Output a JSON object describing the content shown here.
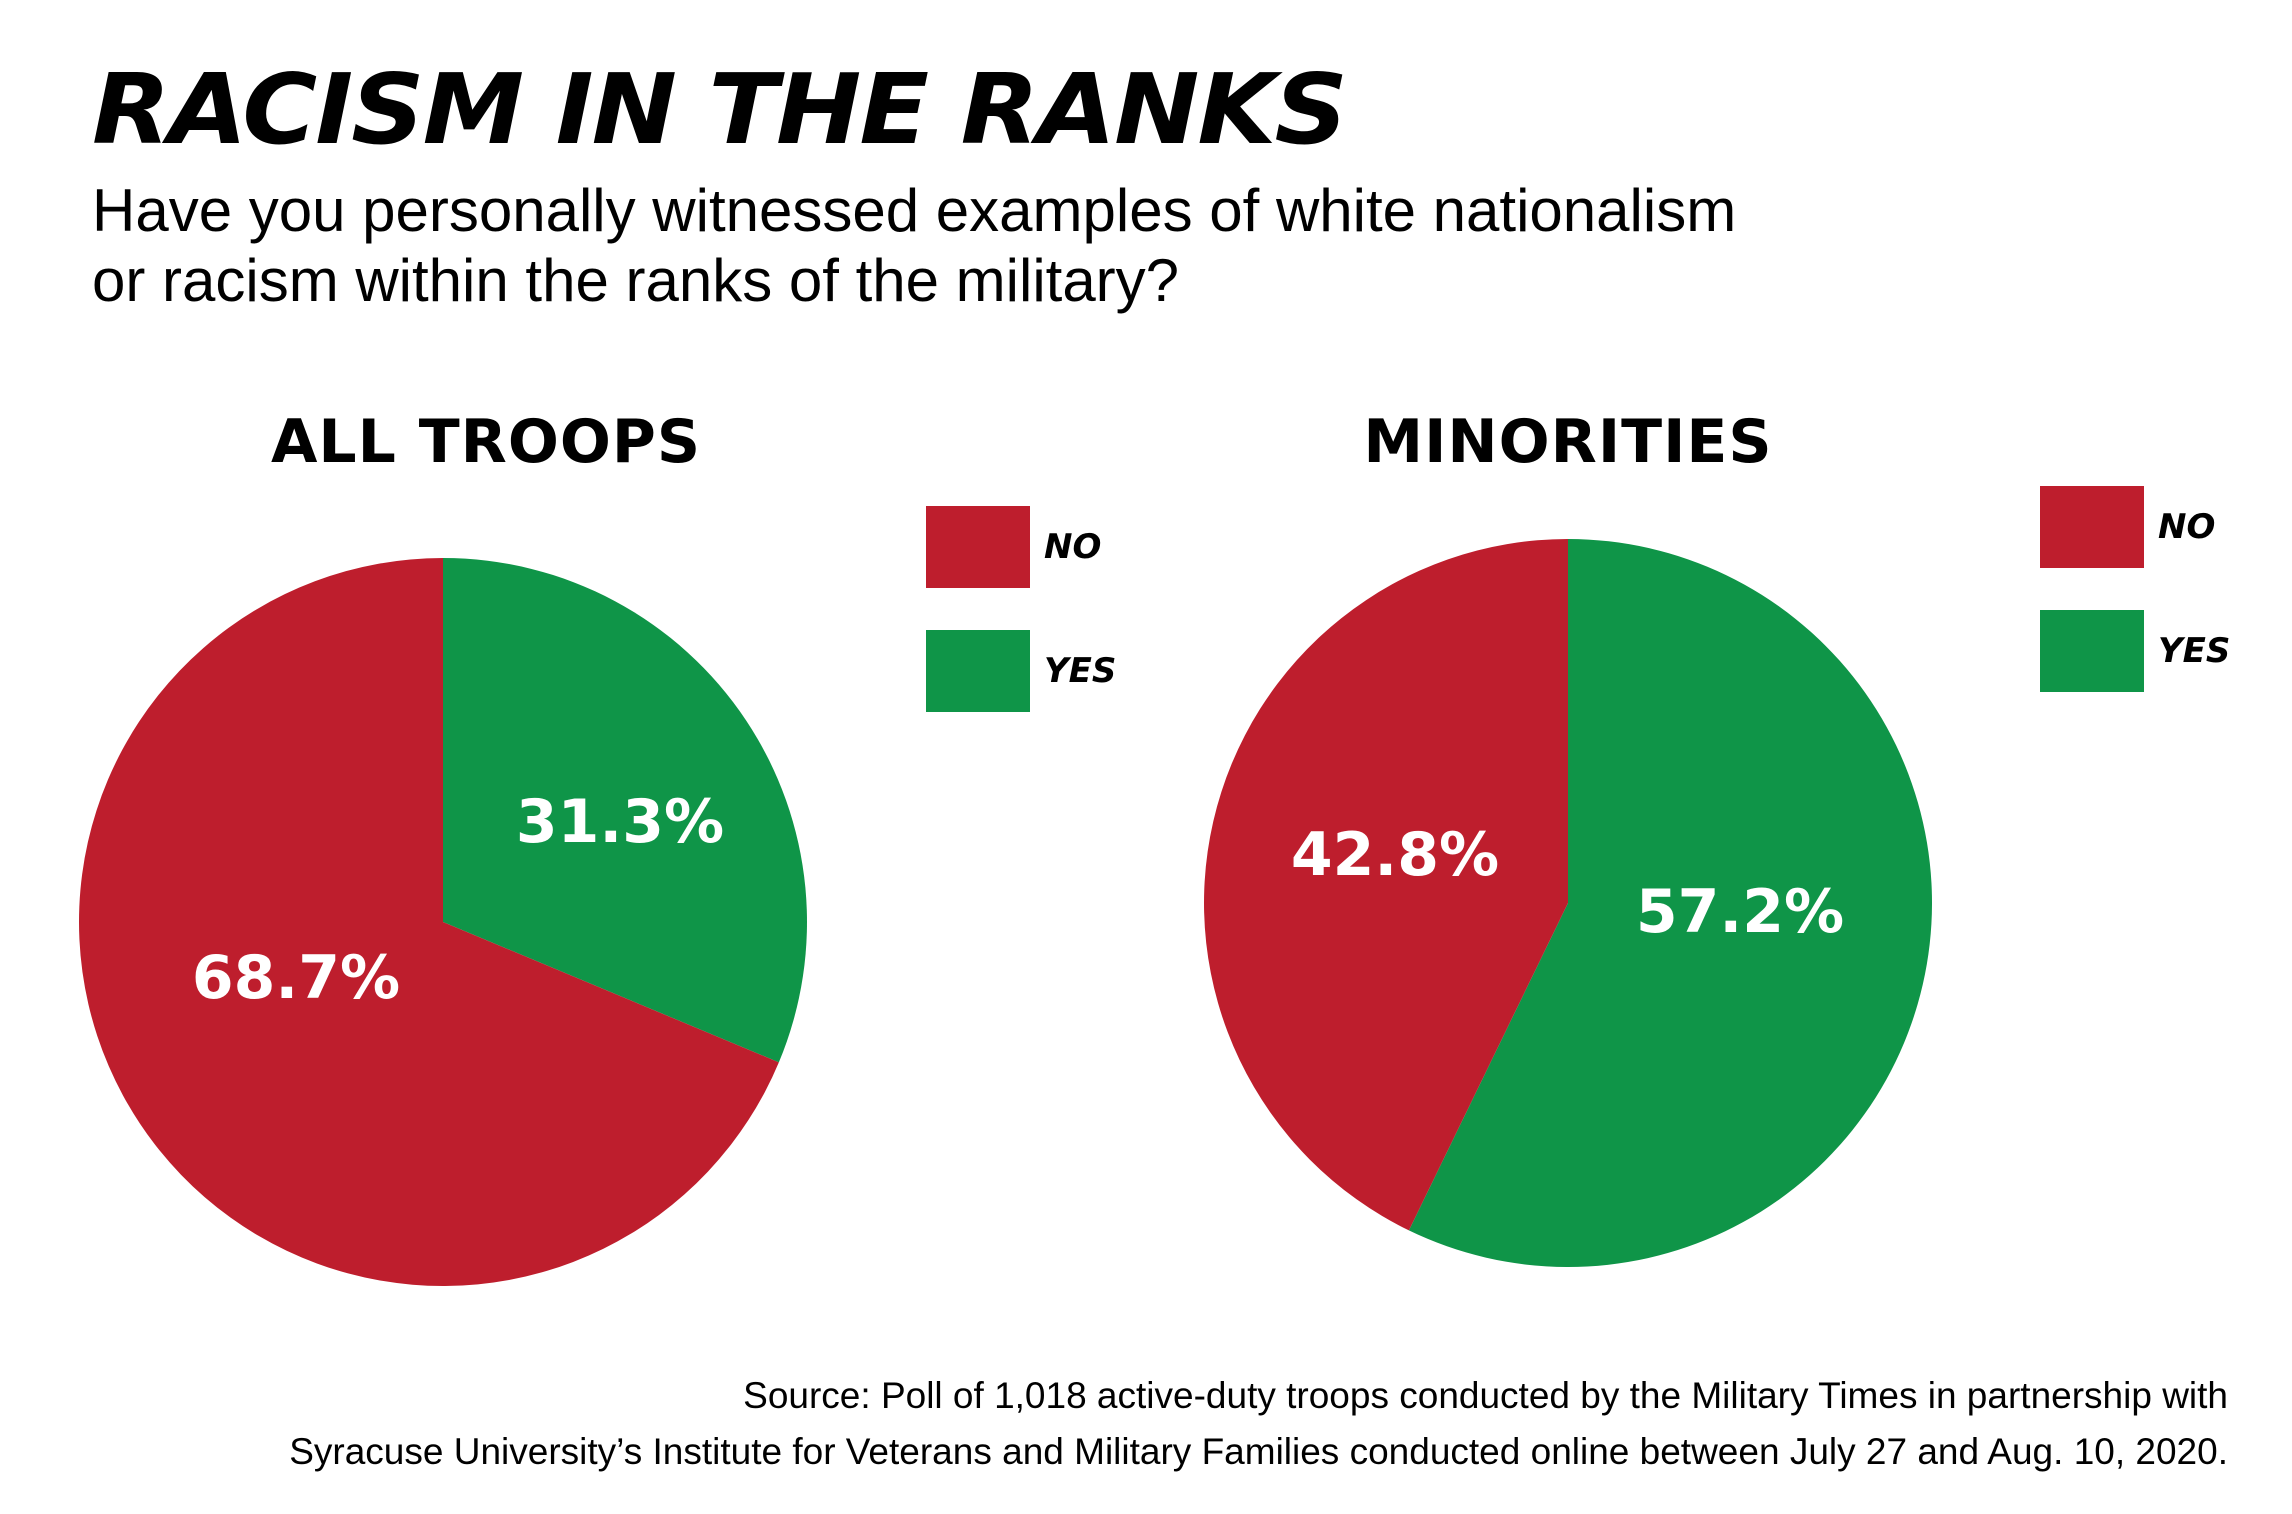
{
  "title": "RACISM IN THE RANKS",
  "subtitle": [
    "Have you personally witnessed examples of white nationalism",
    "or racism within the ranks of the military?"
  ],
  "legend": [
    {
      "label": "NO",
      "color": "#be1e2d"
    },
    {
      "label": "YES",
      "color": "#0f9548"
    }
  ],
  "source": [
    "Source: Poll of 1,018 active-duty troops conducted by the Military Times in partnership with",
    "Syracuse University’s Institute for Veterans and Military Families conducted online between July 27 and Aug. 10, 2020."
  ],
  "chart_data": [
    {
      "type": "pie",
      "title": "ALL TROOPS",
      "slices": [
        {
          "label": "YES",
          "value": 31.3,
          "display": "31.3%",
          "color": "#0f9548"
        },
        {
          "label": "NO",
          "value": 68.7,
          "display": "68.7%",
          "color": "#be1e2d"
        }
      ],
      "legend_placement": "right"
    },
    {
      "type": "pie",
      "title": "MINORITIES",
      "slices": [
        {
          "label": "YES",
          "value": 57.2,
          "display": "57.2%",
          "color": "#0f9548"
        },
        {
          "label": "NO",
          "value": 42.8,
          "display": "42.8%",
          "color": "#be1e2d"
        }
      ],
      "legend_placement": "right"
    }
  ]
}
